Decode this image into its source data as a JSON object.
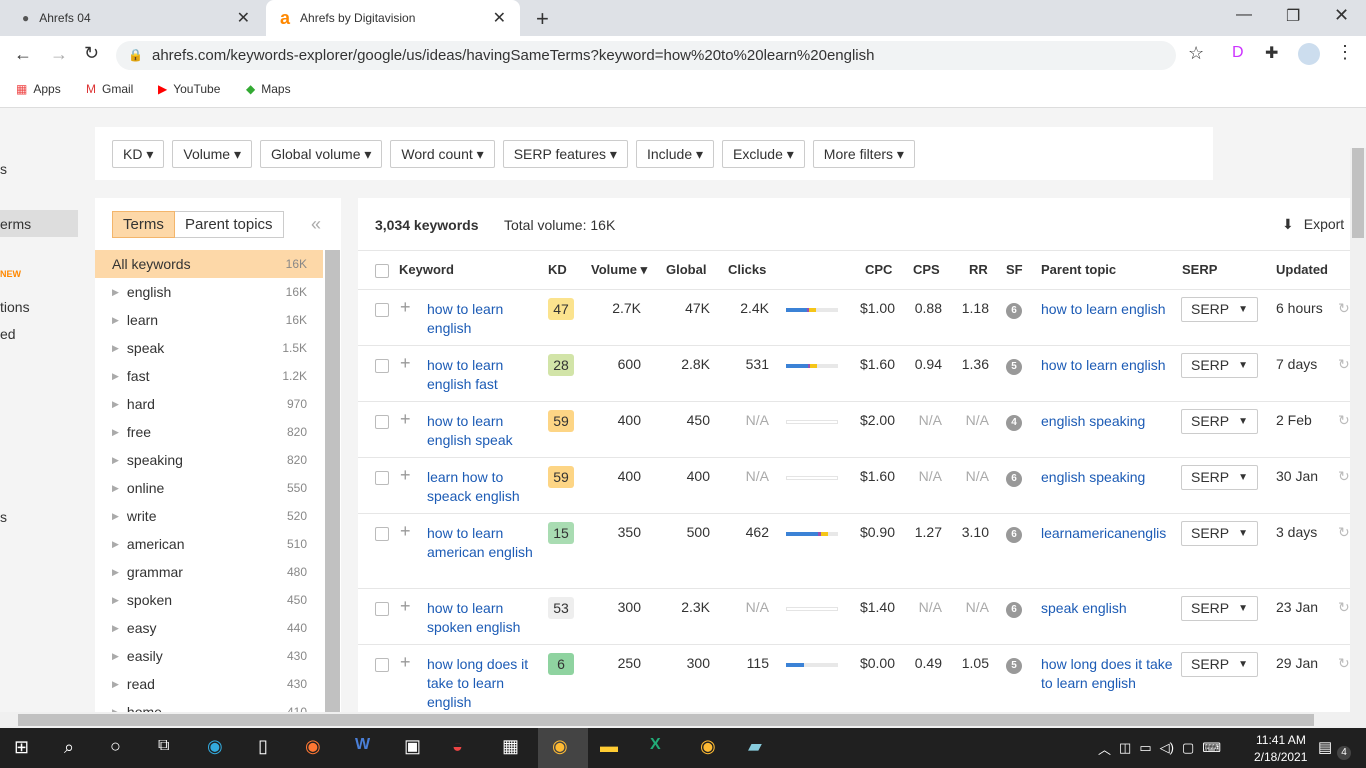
{
  "browser": {
    "tabs": [
      {
        "title": "Ahrefs 04",
        "active": false
      },
      {
        "title": "Ahrefs by Digitavision",
        "active": true
      }
    ],
    "url": "ahrefs.com/keywords-explorer/google/us/ideas/havingSameTerms?keyword=how%20to%20learn%20english",
    "bookmarks": [
      "Apps",
      "Gmail",
      "YouTube",
      "Maps"
    ]
  },
  "sidebar_partial": [
    "s",
    "erms",
    "NEW",
    "tions",
    "ed",
    "s"
  ],
  "filters": [
    "KD",
    "Volume",
    "Global volume",
    "Word count",
    "SERP features",
    "Include",
    "Exclude",
    "More filters"
  ],
  "left": {
    "tabs": [
      "Terms",
      "Parent topics"
    ],
    "collapse": "«",
    "items": [
      {
        "label": "All keywords",
        "count": "16K"
      },
      {
        "label": "english",
        "count": "16K"
      },
      {
        "label": "learn",
        "count": "16K"
      },
      {
        "label": "speak",
        "count": "1.5K"
      },
      {
        "label": "fast",
        "count": "1.2K"
      },
      {
        "label": "hard",
        "count": "970"
      },
      {
        "label": "free",
        "count": "820"
      },
      {
        "label": "speaking",
        "count": "820"
      },
      {
        "label": "online",
        "count": "550"
      },
      {
        "label": "write",
        "count": "520"
      },
      {
        "label": "american",
        "count": "510"
      },
      {
        "label": "grammar",
        "count": "480"
      },
      {
        "label": "spoken",
        "count": "450"
      },
      {
        "label": "easy",
        "count": "440"
      },
      {
        "label": "easily",
        "count": "430"
      },
      {
        "label": "read",
        "count": "430"
      },
      {
        "label": "home",
        "count": "410"
      }
    ]
  },
  "main": {
    "count": "3,034 keywords",
    "total": "Total volume: 16K",
    "export": "Export",
    "headers": {
      "keyword": "Keyword",
      "kd": "KD",
      "volume": "Volume ▾",
      "global": "Global",
      "clicks": "Clicks",
      "cpc": "CPC",
      "cps": "CPS",
      "rr": "RR",
      "sf": "SF",
      "parent": "Parent topic",
      "serp": "SERP",
      "updated": "Updated"
    },
    "rows": [
      {
        "keyword": "how to learn english",
        "kd": "47",
        "kd_color": "#fbe38e",
        "volume": "2.7K",
        "global": "47K",
        "clicks": "2.4K",
        "bar": [
          40,
          5,
          13
        ],
        "cpc": "$1.00",
        "cps": "0.88",
        "rr": "1.18",
        "sf": "6",
        "parent": "how to learn english",
        "serp": "SERP",
        "updated": "6 hours"
      },
      {
        "keyword": "how to learn english fast",
        "kd": "28",
        "kd_color": "#d2e4a8",
        "volume": "600",
        "global": "2.8K",
        "clicks": "531",
        "bar": [
          42,
          5,
          13
        ],
        "cpc": "$1.60",
        "cps": "0.94",
        "rr": "1.36",
        "sf": "5",
        "parent": "how to learn english",
        "serp": "SERP",
        "updated": "7 days"
      },
      {
        "keyword": "how to learn english speak",
        "kd": "59",
        "kd_color": "#fdd585",
        "volume": "400",
        "global": "450",
        "clicks": "N/A",
        "bar": [
          0,
          0,
          0
        ],
        "cpc": "$2.00",
        "cps": "N/A",
        "rr": "N/A",
        "sf": "4",
        "parent": "english speaking",
        "serp": "SERP",
        "updated": "2 Feb"
      },
      {
        "keyword": "learn how to speack english",
        "kd": "59",
        "kd_color": "#fdd585",
        "volume": "400",
        "global": "400",
        "clicks": "N/A",
        "bar": [
          0,
          0,
          0
        ],
        "cpc": "$1.60",
        "cps": "N/A",
        "rr": "N/A",
        "sf": "6",
        "parent": "english speaking",
        "serp": "SERP",
        "updated": "30 Jan"
      },
      {
        "keyword": "how to learn american english",
        "kd": "15",
        "kd_color": "#a9dcb2",
        "volume": "350",
        "global": "500",
        "clicks": "462",
        "bar": [
          62,
          5,
          13
        ],
        "cpc": "$0.90",
        "cps": "1.27",
        "rr": "3.10",
        "sf": "6",
        "parent": "learnamericanenglis",
        "serp": "SERP",
        "updated": "3 days"
      },
      {
        "keyword": "how to learn spoken english",
        "kd": "53",
        "kd_color": "#eeeeee",
        "volume": "300",
        "global": "2.3K",
        "clicks": "N/A",
        "bar": [
          0,
          0,
          0
        ],
        "cpc": "$1.40",
        "cps": "N/A",
        "rr": "N/A",
        "sf": "6",
        "parent": "speak english",
        "serp": "SERP",
        "updated": "23 Jan"
      },
      {
        "keyword": "how long does it take to learn english",
        "kd": "6",
        "kd_color": "#8fd3a0",
        "volume": "250",
        "global": "300",
        "clicks": "115",
        "bar": [
          35,
          0,
          0
        ],
        "cpc": "$0.00",
        "cps": "0.49",
        "rr": "1.05",
        "sf": "5",
        "parent": "how long does it take to learn english",
        "serp": "SERP",
        "updated": "29 Jan"
      }
    ]
  },
  "taskbar": {
    "time": "11:41 AM",
    "date": "2/18/2021",
    "notifications": "4"
  }
}
